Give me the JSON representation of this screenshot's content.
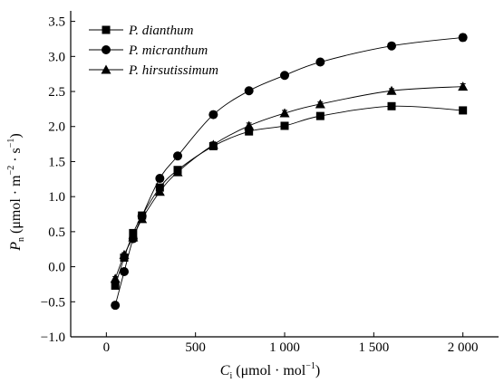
{
  "chart_data": {
    "type": "line",
    "x_label": {
      "main": "C",
      "sub": "i",
      "units": "(μmol · mol",
      "units_sup": "−1",
      "units_close": ")"
    },
    "y_label": {
      "main": "P",
      "sub": "n",
      "units": "(μmol · m",
      "units_sup1": "−2",
      "units_mid": " · s",
      "units_sup2": "−1",
      "units_close": ")"
    },
    "xlim": [
      -200,
      2200
    ],
    "ylim": [
      -1.0,
      3.65
    ],
    "x_ticks": [
      0,
      500,
      1000,
      1500,
      2000
    ],
    "x_tick_labels": [
      "0",
      "500",
      "1 000",
      "1 500",
      "2 000"
    ],
    "y_ticks": [
      -1.0,
      -0.5,
      0.0,
      0.5,
      1.0,
      1.5,
      2.0,
      2.5,
      3.0,
      3.5
    ],
    "y_tick_labels": [
      "−1.0",
      "−0.5",
      "0.0",
      "0.5",
      "1.0",
      "1.5",
      "2.0",
      "2.5",
      "3.0",
      "3.5"
    ],
    "grid": false,
    "legend_position": "top-left",
    "series": [
      {
        "name": "P. dianthum",
        "marker": "square",
        "color": "#000000",
        "x": [
          50,
          100,
          150,
          200,
          300,
          400,
          600,
          800,
          1000,
          1200,
          1600,
          2000
        ],
        "y": [
          -0.27,
          0.13,
          0.48,
          0.73,
          1.13,
          1.38,
          1.72,
          1.93,
          2.01,
          2.15,
          2.29,
          2.23
        ],
        "err": [
          0.03,
          0.03,
          0.03,
          0.03,
          0.03,
          0.04,
          0.03,
          0.04,
          0.03,
          0.03,
          0.03,
          0.04
        ]
      },
      {
        "name": "P. micranthum",
        "marker": "circle",
        "color": "#000000",
        "x": [
          50,
          100,
          150,
          200,
          300,
          400,
          600,
          800,
          1000,
          1200,
          1600,
          2000
        ],
        "y": [
          -0.55,
          -0.07,
          0.4,
          0.72,
          1.26,
          1.58,
          2.17,
          2.51,
          2.73,
          2.92,
          3.15,
          3.27
        ],
        "err": [
          0.04,
          0.03,
          0.03,
          0.03,
          0.03,
          0.03,
          0.04,
          0.04,
          0.03,
          0.03,
          0.03,
          0.05
        ]
      },
      {
        "name": "P. hirsutissimum",
        "marker": "triangle",
        "color": "#000000",
        "x": [
          50,
          100,
          150,
          200,
          300,
          400,
          600,
          800,
          1000,
          1200,
          1600,
          2000
        ],
        "y": [
          -0.17,
          0.17,
          0.42,
          0.68,
          1.07,
          1.35,
          1.74,
          2.01,
          2.19,
          2.32,
          2.51,
          2.57
        ],
        "err": [
          0.03,
          0.03,
          0.03,
          0.03,
          0.03,
          0.03,
          0.04,
          0.04,
          0.04,
          0.03,
          0.03,
          0.04
        ]
      }
    ]
  }
}
